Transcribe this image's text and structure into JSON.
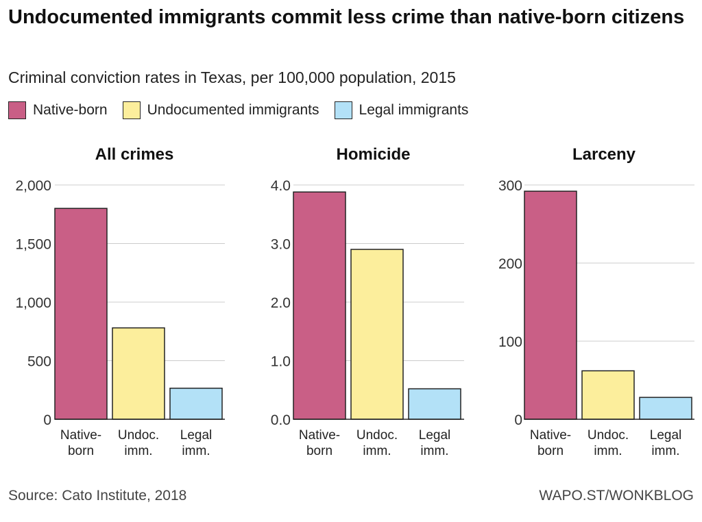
{
  "title": "Undocumented immigrants commit less crime than native-born citizens",
  "subtitle": "Criminal conviction rates in Texas, per 100,000 population, 2015",
  "legend": [
    {
      "label": "Native-born",
      "color": "#c95f86"
    },
    {
      "label": "Undocumented immigrants",
      "color": "#fcee9c"
    },
    {
      "label": "Legal immigrants",
      "color": "#b3e1f7"
    }
  ],
  "chart_data": [
    {
      "type": "bar",
      "title": "All crimes",
      "categories": [
        "Native-born",
        "Undoc. imm.",
        "Legal imm."
      ],
      "category_lines": [
        [
          "Native-",
          "born"
        ],
        [
          "Undoc.",
          "imm."
        ],
        [
          "Legal",
          "imm."
        ]
      ],
      "values": [
        1800,
        780,
        265
      ],
      "ylim": [
        0,
        2000
      ],
      "ticks": [
        0,
        500,
        1000,
        1500,
        2000
      ],
      "tick_labels": [
        "0",
        "500",
        "1,000",
        "1,500",
        "2,000"
      ],
      "grid": true
    },
    {
      "type": "bar",
      "title": "Homicide",
      "categories": [
        "Native-born",
        "Undoc. imm.",
        "Legal imm."
      ],
      "category_lines": [
        [
          "Native-",
          "born"
        ],
        [
          "Undoc.",
          "imm."
        ],
        [
          "Legal",
          "imm."
        ]
      ],
      "values": [
        3.88,
        2.9,
        0.52
      ],
      "ylim": [
        0,
        4
      ],
      "ticks": [
        0,
        1,
        2,
        3,
        4
      ],
      "tick_labels": [
        "0.0",
        "1.0",
        "2.0",
        "3.0",
        "4.0"
      ],
      "grid": true
    },
    {
      "type": "bar",
      "title": "Larceny",
      "categories": [
        "Native-born",
        "Undoc. imm.",
        "Legal imm."
      ],
      "category_lines": [
        [
          "Native-",
          "born"
        ],
        [
          "Undoc.",
          "imm."
        ],
        [
          "Legal",
          "imm."
        ]
      ],
      "values": [
        292,
        62,
        28
      ],
      "ylim": [
        0,
        300
      ],
      "ticks": [
        0,
        100,
        200,
        300
      ],
      "tick_labels": [
        "0",
        "100",
        "200",
        "300"
      ],
      "grid": true
    }
  ],
  "source": "Source: Cato Institute, 2018",
  "credit": "WAPO.ST/WONKBLOG"
}
